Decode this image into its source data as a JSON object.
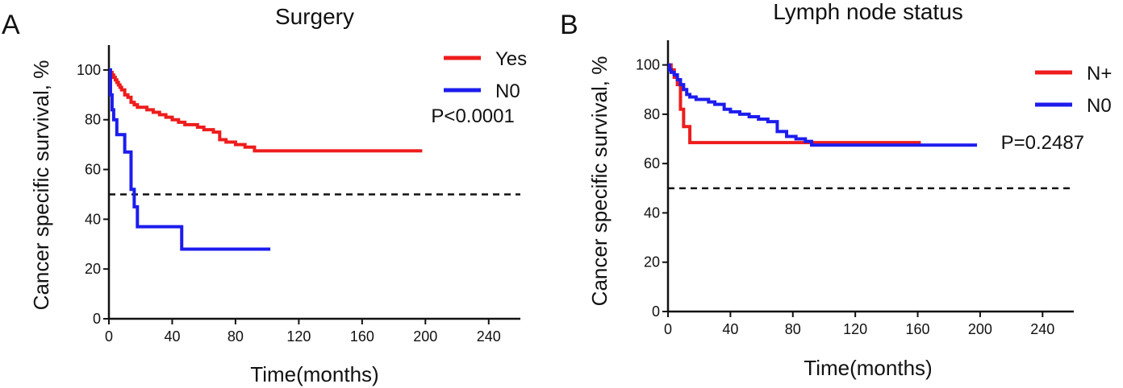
{
  "chart_data": [
    {
      "type": "line",
      "panel_letter": "A",
      "title": "Surgery",
      "xlabel": "Time(months)",
      "ylabel": "Cancer specific survival, %",
      "xlim": [
        0,
        260
      ],
      "ylim": [
        0,
        110
      ],
      "xticks": [
        0,
        40,
        80,
        120,
        160,
        200,
        240
      ],
      "yticks": [
        0,
        20,
        40,
        60,
        80,
        100
      ],
      "xtick_labels": [
        "0",
        "40",
        "80",
        "120",
        "160",
        "200",
        "240"
      ],
      "ytick_labels": [
        "0",
        "20",
        "40",
        "60",
        "80",
        "100"
      ],
      "reference_line_y": 50,
      "annotation": "P<0.0001",
      "annotation_x": 230,
      "annotation_y": 79,
      "legend_position": "top-right",
      "step": true,
      "series": [
        {
          "name": "Yes",
          "color": "#ee1c1c",
          "x": [
            0,
            1,
            2,
            3,
            4,
            5,
            6,
            7,
            8,
            10,
            12,
            14,
            16,
            18,
            20,
            24,
            28,
            32,
            36,
            40,
            44,
            48,
            52,
            56,
            60,
            66,
            70,
            74,
            80,
            86,
            92,
            120,
            160,
            198
          ],
          "y": [
            100,
            99,
            98,
            97,
            96,
            95,
            94,
            93,
            92,
            90,
            89,
            87,
            86,
            85,
            85,
            84,
            83,
            82,
            81,
            80,
            79,
            78,
            78,
            77,
            76,
            75,
            72,
            71,
            70,
            69,
            67.5,
            67.5,
            67.5,
            67.5
          ]
        },
        {
          "name": "N0",
          "color": "#1c1cee",
          "x": [
            0,
            1,
            2,
            3,
            5,
            10,
            14,
            16,
            18,
            24,
            30,
            36,
            46,
            60,
            80,
            102
          ],
          "y": [
            100,
            90,
            84,
            80,
            74,
            67,
            52,
            45,
            37,
            37,
            37,
            37,
            28,
            28,
            28,
            28
          ]
        }
      ]
    },
    {
      "type": "line",
      "panel_letter": "B",
      "title": "Lymph node status",
      "xlabel": "Time(months)",
      "ylabel": "Cancer specific survival, %",
      "xlim": [
        0,
        260
      ],
      "ylim": [
        0,
        110
      ],
      "xticks": [
        0,
        40,
        80,
        120,
        160,
        200,
        240
      ],
      "yticks": [
        0,
        20,
        40,
        60,
        80,
        100
      ],
      "xtick_labels": [
        "0",
        "40",
        "80",
        "120",
        "160",
        "200",
        "240"
      ],
      "ytick_labels": [
        "0",
        "20",
        "40",
        "60",
        "80",
        "100"
      ],
      "reference_line_y": 50,
      "annotation": "P=0.2487",
      "annotation_x": 240,
      "annotation_y": 66,
      "legend_position": "top-right",
      "step": true,
      "series": [
        {
          "name": "N+",
          "color": "#ee1c1c",
          "x": [
            0,
            2,
            4,
            6,
            8,
            10,
            12,
            14,
            60,
            120,
            162
          ],
          "y": [
            100,
            98,
            95,
            92,
            82,
            75,
            75,
            68.5,
            68.5,
            68.5,
            68.5
          ]
        },
        {
          "name": "N0",
          "color": "#1c1cee",
          "x": [
            0,
            1,
            2,
            4,
            6,
            8,
            10,
            12,
            14,
            18,
            22,
            26,
            30,
            36,
            40,
            46,
            52,
            58,
            64,
            70,
            76,
            82,
            88,
            92,
            120,
            160,
            198
          ],
          "y": [
            100,
            98,
            97,
            96,
            94,
            92,
            90,
            88,
            87,
            86,
            86,
            85,
            84,
            82,
            81,
            80,
            79,
            78,
            77,
            73,
            71,
            70,
            69,
            67.5,
            67.5,
            67.5,
            67.5
          ]
        }
      ]
    }
  ]
}
